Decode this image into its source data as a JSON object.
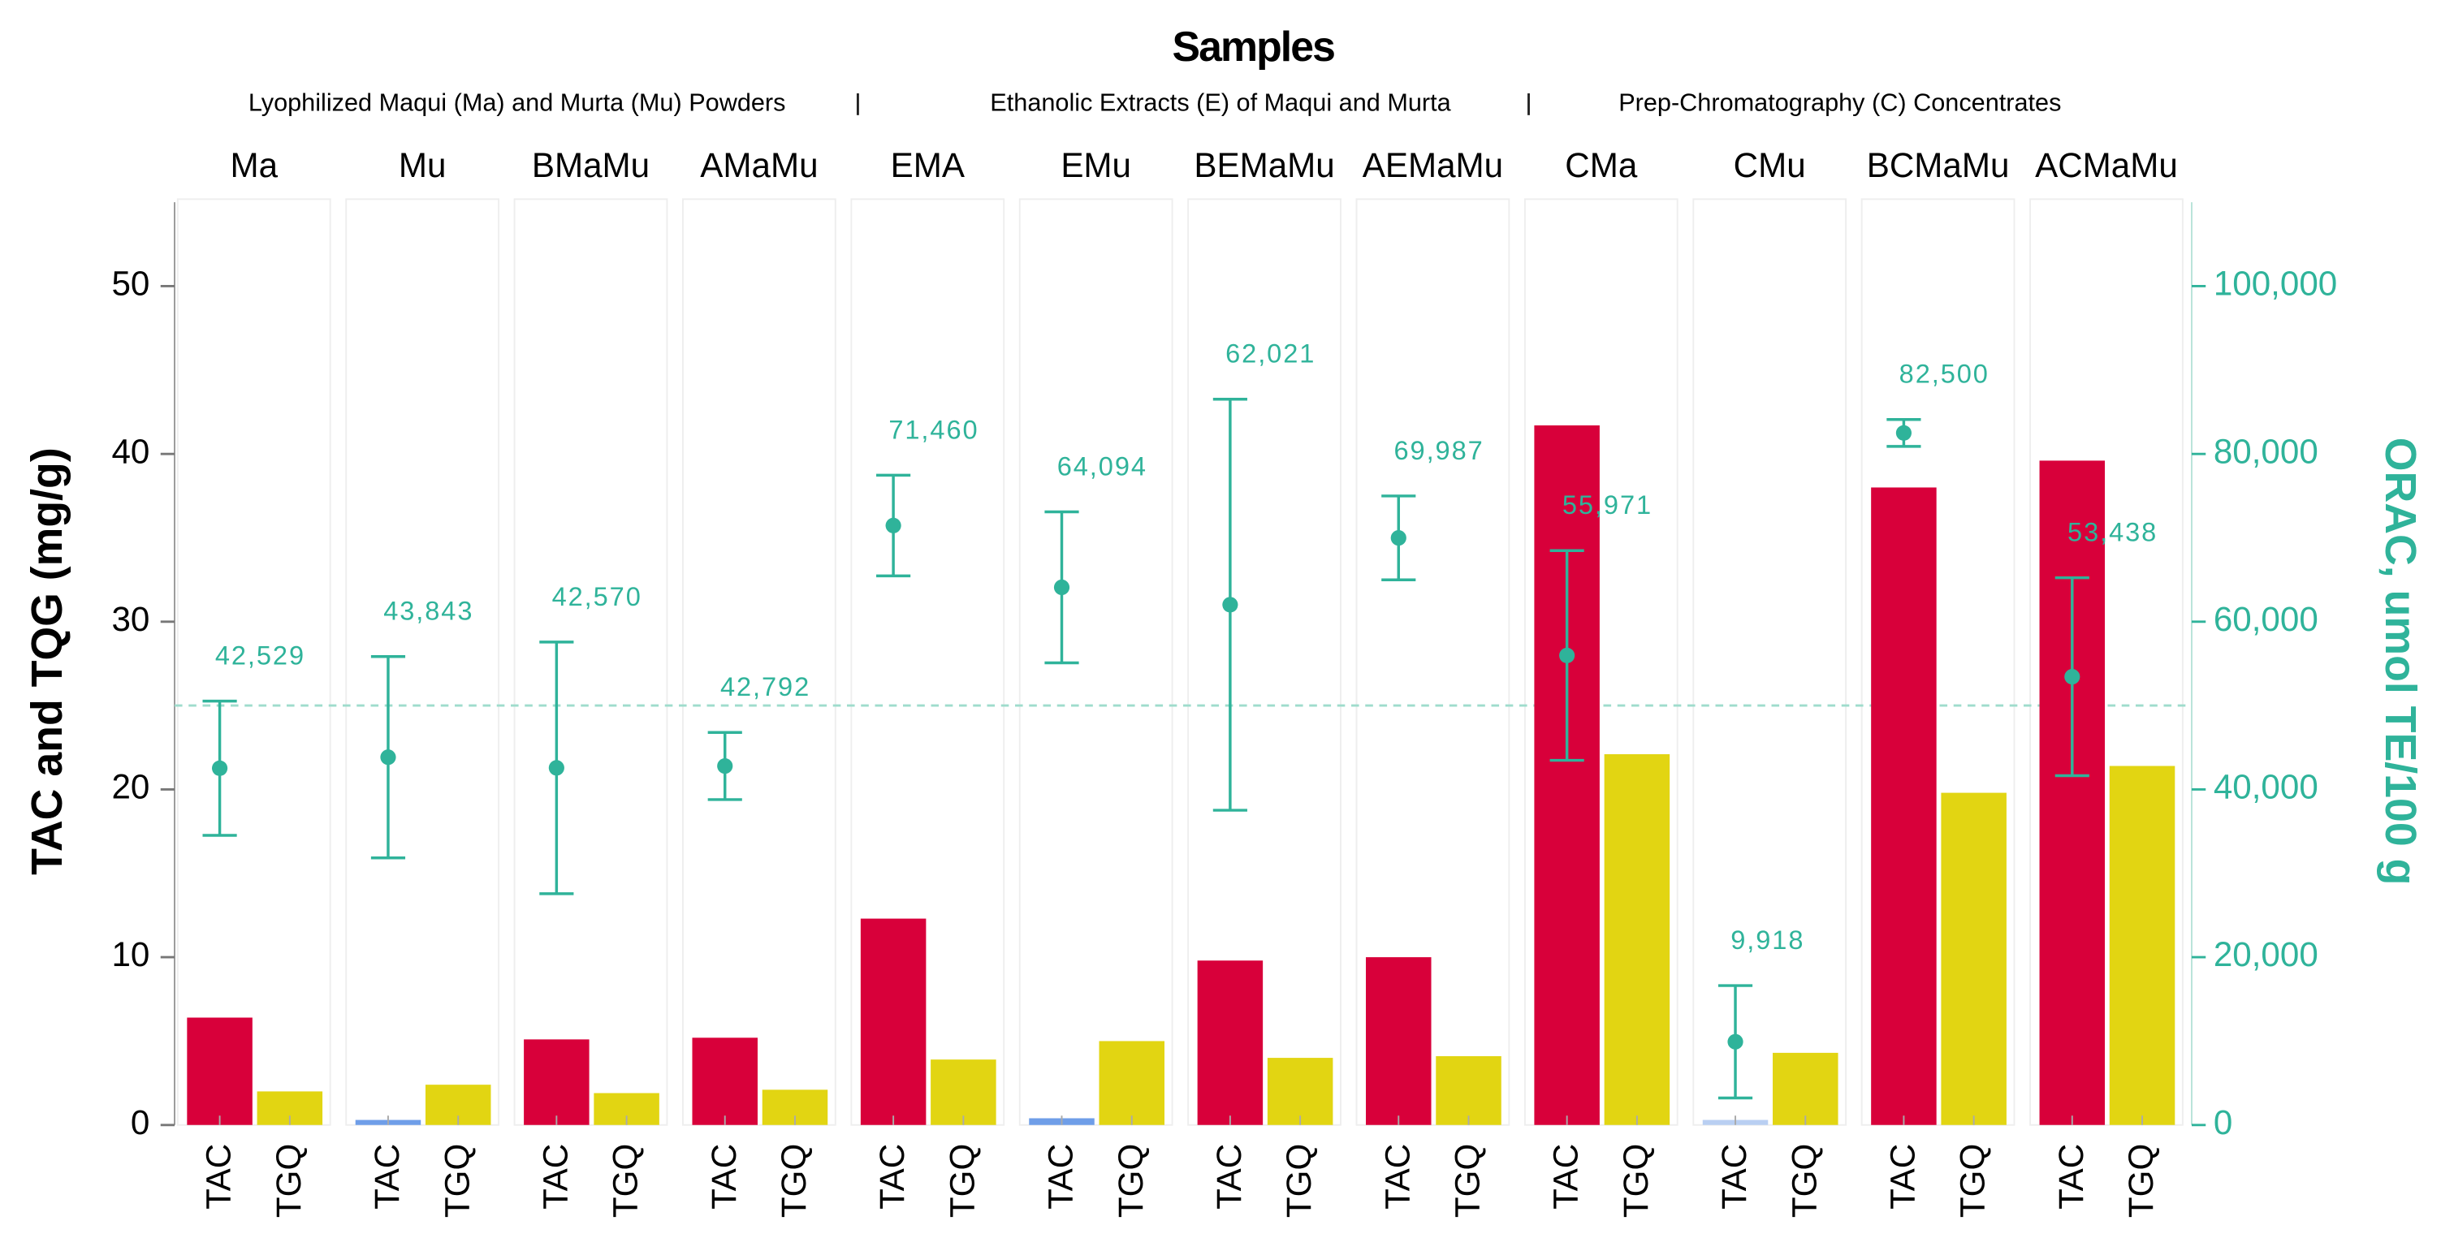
{
  "chart_data": {
    "type": "bar",
    "title": "Samples",
    "groups": [
      "Lyophilized Maqui (Ma) and Murta (Mu) Powders",
      "Ethanolic Extracts (E) of Maqui and Murta",
      "Prep-Chromatography (C) Concentrates"
    ],
    "categories": [
      "Ma",
      "Mu",
      "BMaMu",
      "AMaMu",
      "EMA",
      "EMu",
      "BEMaMu",
      "AEMaMu",
      "CMa",
      "CMu",
      "BCMaMu",
      "ACMaMu"
    ],
    "ylabel": "TAC and TQG (mg/g)",
    "y2label": "ORAC, umol TE/100 g",
    "ylim": [
      0,
      55
    ],
    "yticks": [
      0,
      10,
      20,
      30,
      40,
      50
    ],
    "y2lim": [
      0,
      110000
    ],
    "y2ticks": [
      0,
      {
        "value": 20000,
        "label": "20,000"
      },
      {
        "value": 40000,
        "label": "40,000"
      },
      {
        "value": 60000,
        "label": "60,000"
      },
      {
        "value": 80000,
        "label": "80,000"
      },
      {
        "value": 100000,
        "label": "100,000"
      }
    ],
    "reference_y2": 50000,
    "series": [
      {
        "name": "TAC",
        "color": "#d8003a",
        "colors": [
          "#d8003a",
          "#6f9ee8",
          "#d8003a",
          "#d8003a",
          "#d8003a",
          "#6f9ee8",
          "#d8003a",
          "#d8003a",
          "#d8003a",
          "#b9cff2",
          "#d8003a",
          "#d8003a"
        ],
        "values": [
          6.4,
          0.3,
          5.1,
          5.2,
          12.3,
          0.4,
          9.8,
          10.0,
          41.7,
          0.3,
          38.0,
          39.6
        ]
      },
      {
        "name": "TGQ",
        "color": "#e2d512",
        "values": [
          2.0,
          2.4,
          1.9,
          2.1,
          3.9,
          5.0,
          4.0,
          4.1,
          22.1,
          4.3,
          19.8,
          21.4
        ]
      },
      {
        "name": "ORAC",
        "color": "#2fb39a",
        "axis": "y2",
        "values": [
          42529,
          43843,
          42570,
          42792,
          71460,
          64094,
          62021,
          69987,
          55971,
          9918,
          82500,
          53438
        ],
        "value_labels": [
          "42,529",
          "43,843",
          "42,570",
          "42,792",
          "71,460",
          "64,094",
          "62,021",
          "69,987",
          "55,971",
          "9,918",
          "82,500",
          "53,438"
        ],
        "errors": [
          8000,
          12000,
          15000,
          4000,
          6000,
          9000,
          24500,
          5000,
          12500,
          6700,
          1600,
          11800
        ]
      }
    ]
  }
}
